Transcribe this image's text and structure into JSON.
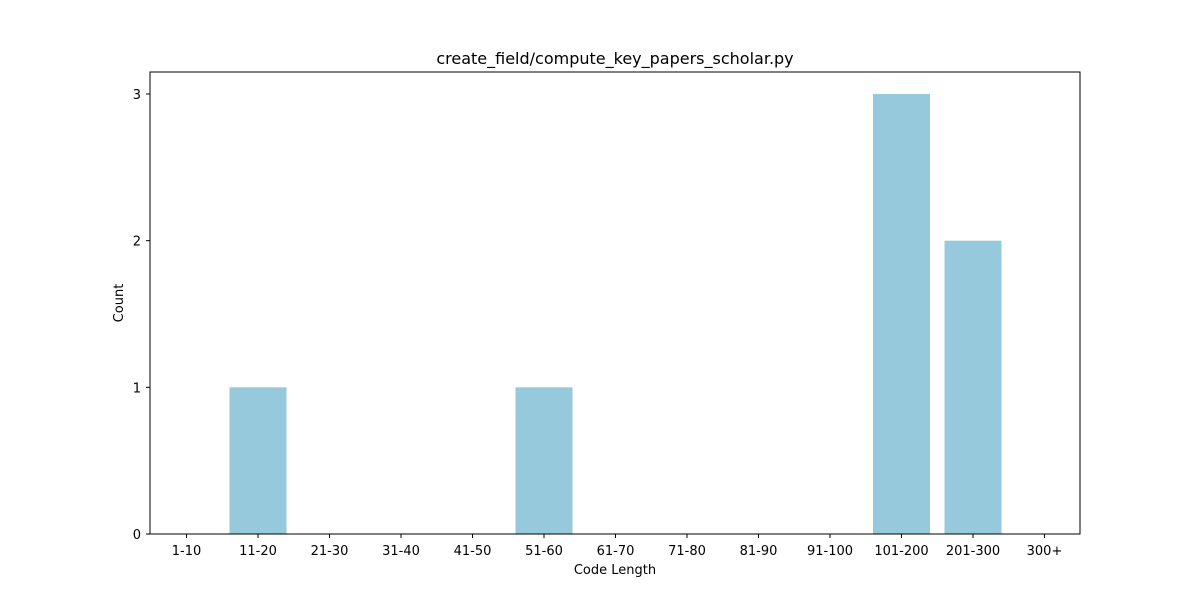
{
  "chart_data": {
    "type": "bar",
    "title": "create_field/compute_key_papers_scholar.py",
    "xlabel": "Code Length",
    "ylabel": "Count",
    "categories": [
      "1-10",
      "11-20",
      "21-30",
      "31-40",
      "41-50",
      "51-60",
      "61-70",
      "71-80",
      "81-90",
      "91-100",
      "101-200",
      "201-300",
      "300+"
    ],
    "values": [
      0,
      1,
      0,
      0,
      0,
      1,
      0,
      0,
      0,
      0,
      3,
      2,
      0
    ],
    "ylim": [
      0,
      3.15
    ],
    "yticks": [
      "0",
      "1",
      "2",
      "3"
    ],
    "grid": false,
    "legend": "none",
    "bar_color": "#96c9dc"
  }
}
